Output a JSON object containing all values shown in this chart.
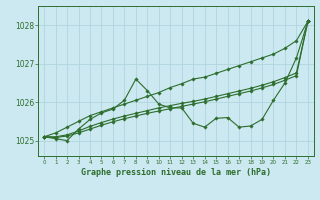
{
  "title": "Graphe pression niveau de la mer (hPa)",
  "background_color": "#cce8f0",
  "grid_color": "#b0d4e0",
  "line_color": "#2d6e2d",
  "xlim": [
    -0.5,
    23.5
  ],
  "ylim": [
    1024.6,
    1028.5
  ],
  "yticks": [
    1025,
    1026,
    1027,
    1028
  ],
  "xticks": [
    0,
    1,
    2,
    3,
    4,
    5,
    6,
    7,
    8,
    9,
    10,
    11,
    12,
    13,
    14,
    15,
    16,
    17,
    18,
    19,
    20,
    21,
    22,
    23
  ],
  "main_series": [
    1025.1,
    1025.05,
    1025.0,
    1025.3,
    1025.55,
    1025.72,
    1025.82,
    1026.05,
    1026.6,
    1026.3,
    1025.95,
    1025.85,
    1025.85,
    1025.45,
    1025.35,
    1025.58,
    1025.6,
    1025.35,
    1025.38,
    1025.55,
    1026.05,
    1026.5,
    1027.15,
    1028.1
  ],
  "trend_high": [
    1025.1,
    1025.2,
    1025.35,
    1025.5,
    1025.65,
    1025.75,
    1025.85,
    1025.95,
    1026.05,
    1026.15,
    1026.25,
    1026.38,
    1026.48,
    1026.6,
    1026.65,
    1026.75,
    1026.85,
    1026.95,
    1027.05,
    1027.15,
    1027.25,
    1027.4,
    1027.6,
    1028.1
  ],
  "trend_mid1": [
    1025.1,
    1025.1,
    1025.15,
    1025.25,
    1025.37,
    1025.47,
    1025.56,
    1025.64,
    1025.71,
    1025.78,
    1025.85,
    1025.91,
    1025.97,
    1026.02,
    1026.08,
    1026.15,
    1026.22,
    1026.29,
    1026.36,
    1026.44,
    1026.53,
    1026.64,
    1026.76,
    1028.1
  ],
  "trend_mid2": [
    1025.1,
    1025.08,
    1025.12,
    1025.2,
    1025.3,
    1025.4,
    1025.49,
    1025.57,
    1025.64,
    1025.71,
    1025.77,
    1025.83,
    1025.89,
    1025.95,
    1026.01,
    1026.08,
    1026.15,
    1026.22,
    1026.29,
    1026.37,
    1026.46,
    1026.57,
    1026.69,
    1028.1
  ]
}
